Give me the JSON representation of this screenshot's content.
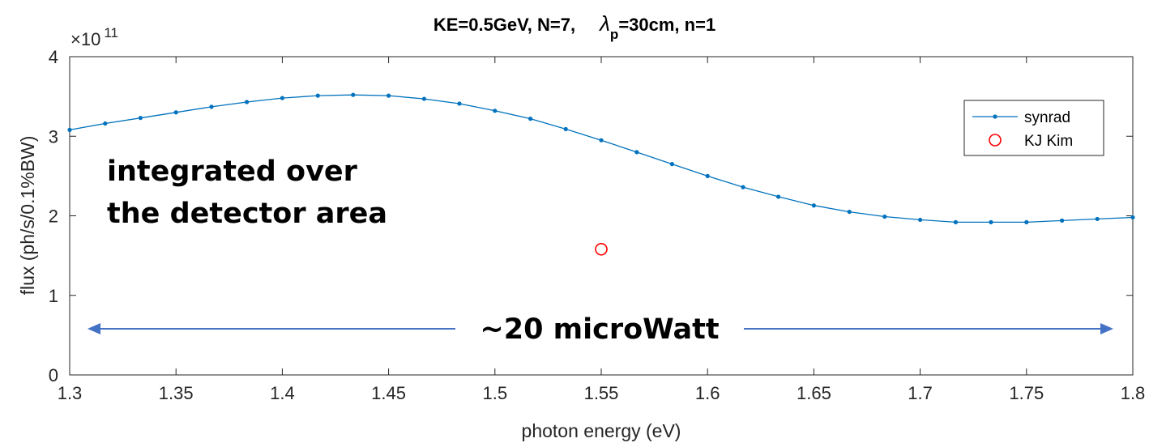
{
  "chart_data": {
    "type": "line",
    "title_parts": {
      "prefix": "KE=0.5GeV, N=7,",
      "lambda_symbol": "λ",
      "lambda_sub": "p",
      "suffix": "=30cm, n=1"
    },
    "xlabel": "photon energy (eV)",
    "ylabel": "flux (ph/s/0.1%BW)",
    "y_multiplier": {
      "base": "×10",
      "exponent": "11"
    },
    "xlim": [
      1.3,
      1.8
    ],
    "ylim": [
      0,
      4
    ],
    "xticks": [
      1.3,
      1.35,
      1.4,
      1.45,
      1.5,
      1.55,
      1.6,
      1.65,
      1.7,
      1.75,
      1.8
    ],
    "xtick_labels": [
      "1.3",
      "1.35",
      "1.4",
      "1.45",
      "1.5",
      "1.55",
      "1.6",
      "1.65",
      "1.7",
      "1.75",
      "1.8"
    ],
    "yticks": [
      0,
      1,
      2,
      3,
      4
    ],
    "ytick_labels": [
      "0",
      "1",
      "2",
      "3",
      "4"
    ],
    "legend_position": "top-right",
    "series": [
      {
        "name": "synrad",
        "color": "#0072BD",
        "marker": "dot",
        "x": [
          1.3,
          1.3167,
          1.3333,
          1.35,
          1.3667,
          1.3833,
          1.4,
          1.4167,
          1.4333,
          1.45,
          1.4667,
          1.4833,
          1.5,
          1.5167,
          1.5333,
          1.55,
          1.5667,
          1.5833,
          1.6,
          1.6167,
          1.6333,
          1.65,
          1.6667,
          1.6833,
          1.7,
          1.7167,
          1.7333,
          1.75,
          1.7667,
          1.7833,
          1.8
        ],
        "y": [
          3.08,
          3.16,
          3.23,
          3.3,
          3.37,
          3.43,
          3.48,
          3.51,
          3.52,
          3.51,
          3.47,
          3.41,
          3.32,
          3.22,
          3.09,
          2.95,
          2.8,
          2.65,
          2.5,
          2.36,
          2.24,
          2.13,
          2.05,
          1.99,
          1.95,
          1.92,
          1.92,
          1.92,
          1.94,
          1.96,
          1.98
        ]
      },
      {
        "name": "KJ Kim",
        "color": "#FF0000",
        "marker": "circle",
        "x": [
          1.55
        ],
        "y": [
          1.58
        ]
      }
    ],
    "annotations": {
      "box_text_line1": "integrated over",
      "box_text_line2": "the detector area",
      "arrow_text": "~20 microWatt",
      "arrow_color": "#4472C4"
    }
  }
}
